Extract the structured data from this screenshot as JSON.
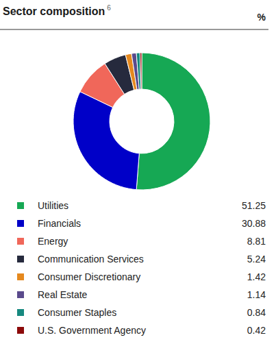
{
  "chart_data": {
    "type": "pie",
    "title": "Sector composition",
    "title_superscript": "6",
    "unit": "%",
    "categories": [
      "Utilities",
      "Financials",
      "Energy",
      "Communication Services",
      "Consumer Discretionary",
      "Real Estate",
      "Consumer Staples",
      "U.S. Government Agency"
    ],
    "values": [
      51.25,
      30.88,
      8.81,
      5.24,
      1.42,
      1.14,
      0.84,
      0.42
    ],
    "colors": [
      "#16a854",
      "#0000c8",
      "#f0675a",
      "#262a3d",
      "#e5891f",
      "#5a4a8c",
      "#17897f",
      "#8c0a0a"
    ],
    "legend": "bottom"
  }
}
